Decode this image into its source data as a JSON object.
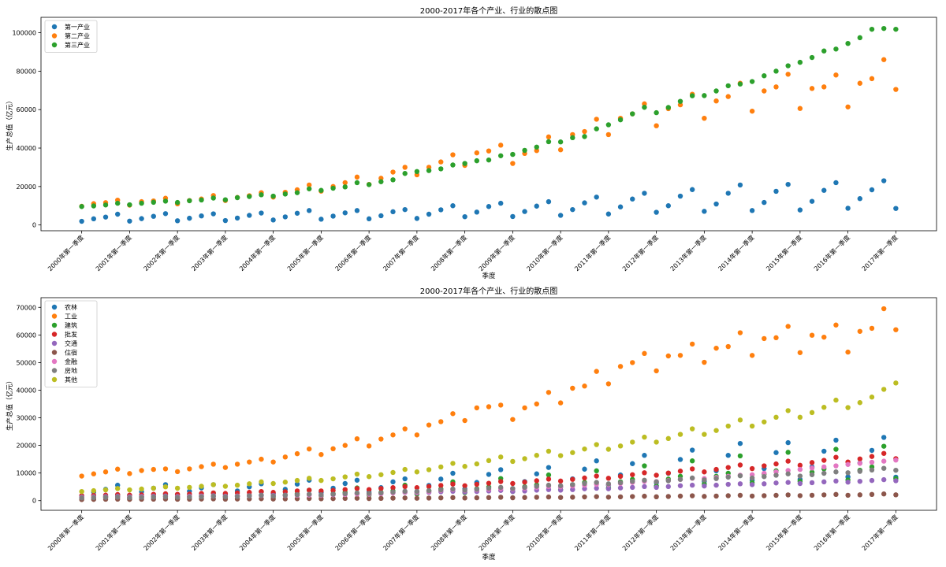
{
  "chart_data": [
    {
      "type": "scatter",
      "title": "2000-2017年各个产业、行业的散点图",
      "xlabel": "季度",
      "ylabel": "生产总值（亿元）",
      "ylim": [
        -3000,
        108000
      ],
      "yticks": [
        0,
        20000,
        40000,
        60000,
        80000,
        100000
      ],
      "xticks": [
        "2000年第一季度",
        "2001年第一季度",
        "2002年第一季度",
        "2003年第一季度",
        "2004年第一季度",
        "2005年第一季度",
        "2006年第一季度",
        "2007年第一季度",
        "2008年第一季度",
        "2009年第一季度",
        "2010年第一季度",
        "2011年第一季度",
        "2012年第一季度",
        "2013年第一季度",
        "2014年第一季度",
        "2015年第一季度",
        "2016年第一季度",
        "2017年第一季度"
      ],
      "legend_location": "upper-left",
      "series": [
        {
          "name": "第一产业",
          "color": "#1f77b4",
          "values": [
            1900,
            3200,
            4100,
            5600,
            2000,
            3300,
            4500,
            5900,
            2200,
            3500,
            4700,
            5800,
            2300,
            3600,
            5000,
            6200,
            2600,
            4200,
            6100,
            7500,
            3000,
            4600,
            6300,
            7500,
            3200,
            4800,
            6900,
            8000,
            3400,
            5600,
            7900,
            10000,
            4300,
            6700,
            9600,
            11300,
            4400,
            7000,
            9800,
            12100,
            5000,
            8000,
            11500,
            14500,
            5700,
            9400,
            13500,
            16500,
            6600,
            10000,
            15000,
            18400,
            7100,
            10900,
            16500,
            20800,
            7500,
            11700,
            17500,
            21100,
            7800,
            12300,
            18000,
            22000,
            8700,
            13700,
            18300,
            23000,
            8600
          ]
        },
        {
          "name": "第二产业",
          "color": "#ff7f0e",
          "values": [
            9700,
            11100,
            11600,
            12900,
            10300,
            12100,
            12500,
            13900,
            11000,
            12700,
            13500,
            15300,
            12700,
            14300,
            15200,
            16800,
            14500,
            17000,
            18300,
            20800,
            17600,
            20000,
            22000,
            24900,
            21100,
            24300,
            27500,
            30000,
            26100,
            30000,
            32800,
            36500,
            31000,
            37500,
            38500,
            41500,
            32000,
            37200,
            38700,
            45800,
            39100,
            47000,
            48600,
            55000,
            47000,
            55500,
            57800,
            63000,
            51600,
            60500,
            62500,
            68000,
            55500,
            64500,
            66800,
            73700,
            59200,
            69700,
            71800,
            78400,
            60600,
            71000,
            71800,
            78000,
            61400,
            73700,
            76100,
            86000,
            70500
          ]
        },
        {
          "name": "第三产业",
          "color": "#2ca02c",
          "values": [
            9600,
            9900,
            10400,
            11300,
            10500,
            11300,
            11800,
            12400,
            11700,
            12600,
            13000,
            14000,
            13100,
            14200,
            14800,
            15700,
            15000,
            16100,
            16800,
            18800,
            18000,
            19100,
            19800,
            22000,
            21000,
            22500,
            23500,
            26800,
            27800,
            28300,
            29200,
            31200,
            32000,
            33400,
            33800,
            36000,
            36700,
            38800,
            40500,
            43300,
            43200,
            45400,
            46000,
            50000,
            52100,
            54700,
            57800,
            61200,
            58400,
            61100,
            64300,
            67200,
            67300,
            69700,
            72400,
            73300,
            74600,
            77600,
            80000,
            82800,
            84600,
            87100,
            90500,
            91500,
            94400,
            97400,
            101800,
            102200,
            101800
          ]
        }
      ]
    },
    {
      "type": "scatter",
      "title": "2000-2017年各个产业、行业的散点图",
      "xlabel": "季度",
      "ylabel": "生产总值（亿元）",
      "ylim": [
        -3500,
        73500
      ],
      "yticks": [
        0,
        10000,
        20000,
        30000,
        40000,
        50000,
        60000,
        70000
      ],
      "xticks": [
        "2000年第一季度",
        "2001年第一季度",
        "2002年第一季度",
        "2003年第一季度",
        "2004年第一季度",
        "2005年第一季度",
        "2006年第一季度",
        "2007年第一季度",
        "2008年第一季度",
        "2009年第一季度",
        "2010年第一季度",
        "2011年第一季度",
        "2012年第一季度",
        "2013年第一季度",
        "2014年第一季度",
        "2015年第一季度",
        "2016年第一季度",
        "2017年第一季度"
      ],
      "legend_location": "upper-left",
      "series": [
        {
          "name": "农林",
          "color": "#1f77b4",
          "values": [
            1700,
            3100,
            4100,
            5600,
            1900,
            3200,
            4500,
            5800,
            2100,
            3400,
            4600,
            5800,
            2200,
            3500,
            5000,
            6100,
            2500,
            4100,
            6000,
            7400,
            2900,
            4500,
            6200,
            7400,
            3100,
            4700,
            6800,
            7900,
            3300,
            5500,
            7800,
            9900,
            4200,
            6600,
            9500,
            11200,
            4300,
            6900,
            9700,
            12000,
            4900,
            7900,
            11400,
            14400,
            5600,
            9300,
            13400,
            16400,
            6500,
            9900,
            14900,
            18300,
            7000,
            10800,
            16400,
            20700,
            7400,
            11600,
            17400,
            21000,
            7700,
            12200,
            17900,
            21900,
            8600,
            13600,
            18200,
            22900,
            8500
          ]
        },
        {
          "name": "工业",
          "color": "#ff7f0e",
          "values": [
            8900,
            9700,
            10400,
            11400,
            9800,
            10900,
            11300,
            11500,
            10500,
            11500,
            12300,
            13200,
            12000,
            13200,
            14000,
            15000,
            14000,
            15800,
            17000,
            18700,
            16700,
            18800,
            20000,
            22400,
            19800,
            22300,
            23800,
            26000,
            23800,
            27400,
            28600,
            31500,
            29000,
            33600,
            34000,
            34600,
            29400,
            33600,
            35000,
            39200,
            35400,
            40700,
            41500,
            46800,
            42300,
            48600,
            50000,
            53300,
            47000,
            52400,
            52600,
            56700,
            50100,
            55200,
            55800,
            60800,
            52600,
            58700,
            59000,
            63100,
            53600,
            59900,
            59200,
            63600,
            53800,
            61300,
            62400,
            69500,
            61900
          ]
        },
        {
          "name": "建筑",
          "color": "#2ca02c",
          "values": [
            800,
            1100,
            1300,
            2000,
            900,
            1300,
            1500,
            2300,
            1000,
            1400,
            1700,
            2700,
            1200,
            1700,
            2000,
            3200,
            1400,
            2100,
            2500,
            3800,
            1700,
            2500,
            3000,
            4600,
            2000,
            3000,
            3500,
            5600,
            2400,
            3600,
            4200,
            6800,
            2900,
            4300,
            4900,
            8000,
            3300,
            5000,
            5700,
            9300,
            3900,
            5800,
            6600,
            10800,
            4600,
            6800,
            7700,
            12600,
            5300,
            7800,
            8800,
            14400,
            6000,
            8800,
            9900,
            16200,
            6500,
            9600,
            10800,
            17500,
            7000,
            10300,
            11500,
            18600,
            7500,
            11000,
            12200,
            19700,
            8000
          ]
        },
        {
          "name": "批发",
          "color": "#d62728",
          "values": [
            1800,
            1900,
            2000,
            2200,
            2000,
            2100,
            2300,
            2500,
            2300,
            2400,
            2600,
            2800,
            2600,
            2800,
            3000,
            3300,
            3000,
            3200,
            3500,
            3800,
            3500,
            3700,
            4000,
            4400,
            4000,
            4400,
            4700,
            5100,
            4700,
            5100,
            5500,
            6000,
            5400,
            5900,
            6300,
            6900,
            6200,
            6700,
            7200,
            7800,
            7100,
            7700,
            8200,
            8900,
            8100,
            8800,
            9400,
            10100,
            9200,
            10000,
            10700,
            11500,
            10400,
            11300,
            12000,
            12900,
            11600,
            12600,
            13300,
            14300,
            12800,
            13800,
            14600,
            15700,
            14000,
            15100,
            16000,
            17100,
            15200
          ]
        },
        {
          "name": "交通",
          "color": "#9467bd",
          "values": [
            1300,
            1400,
            1500,
            1600,
            1400,
            1500,
            1600,
            1700,
            1500,
            1600,
            1700,
            1800,
            1600,
            1700,
            1800,
            2000,
            1900,
            2000,
            2100,
            2300,
            2100,
            2300,
            2400,
            2600,
            2400,
            2600,
            2800,
            3000,
            2800,
            3000,
            3200,
            3400,
            3100,
            3300,
            3500,
            3700,
            3300,
            3500,
            3800,
            4000,
            3800,
            4000,
            4300,
            4500,
            4300,
            4600,
            4800,
            5100,
            4800,
            5100,
            5400,
            5600,
            5300,
            5600,
            5900,
            6100,
            5800,
            6100,
            6400,
            6600,
            6200,
            6500,
            6800,
            7100,
            6700,
            7000,
            7300,
            7600,
            7200
          ]
        },
        {
          "name": "住宿",
          "color": "#8c564b",
          "values": [
            400,
            450,
            500,
            550,
            450,
            500,
            550,
            600,
            500,
            550,
            600,
            650,
            550,
            600,
            650,
            700,
            600,
            650,
            700,
            780,
            680,
            740,
            800,
            870,
            760,
            830,
            900,
            980,
            860,
            940,
            1010,
            1100,
            960,
            1040,
            1120,
            1220,
            1050,
            1130,
            1220,
            1320,
            1150,
            1240,
            1340,
            1450,
            1270,
            1370,
            1480,
            1600,
            1400,
            1510,
            1630,
            1760,
            1530,
            1650,
            1780,
            1920,
            1660,
            1790,
            1930,
            2080,
            1800,
            1940,
            2090,
            2250,
            1950,
            2100,
            2260,
            2430,
            2100
          ]
        },
        {
          "name": "金融",
          "color": "#e377c2",
          "values": [
            1100,
            1200,
            1200,
            1300,
            1200,
            1300,
            1300,
            1400,
            1300,
            1400,
            1500,
            1600,
            1500,
            1600,
            1700,
            1800,
            1700,
            1800,
            1900,
            2000,
            1900,
            2100,
            2200,
            2400,
            2300,
            2500,
            2800,
            3100,
            3000,
            3300,
            3700,
            4000,
            3700,
            3900,
            4100,
            4300,
            4200,
            4500,
            4800,
            5100,
            5000,
            5300,
            5600,
            5900,
            5800,
            6200,
            6600,
            7000,
            6900,
            7300,
            7700,
            8100,
            8000,
            8400,
            8800,
            9200,
            9400,
            9900,
            10400,
            10900,
            11300,
            11800,
            12200,
            12600,
            13100,
            13500,
            13900,
            14300,
            14700
          ]
        },
        {
          "name": "房地",
          "color": "#7f7f7f",
          "values": [
            1000,
            1100,
            1200,
            1300,
            1100,
            1200,
            1300,
            1400,
            1200,
            1300,
            1400,
            1600,
            1400,
            1500,
            1700,
            1900,
            1700,
            1900,
            2100,
            2300,
            2100,
            2300,
            2500,
            2800,
            2600,
            2800,
            3100,
            3400,
            3300,
            3600,
            3900,
            4200,
            3800,
            4100,
            4500,
            4800,
            4400,
            4800,
            5200,
            5600,
            5400,
            5800,
            6200,
            6600,
            6100,
            6500,
            7000,
            7400,
            6800,
            7200,
            7700,
            8200,
            7500,
            8000,
            8500,
            9000,
            8200,
            8700,
            9200,
            9700,
            8900,
            9400,
            9900,
            10400,
            10100,
            10600,
            11100,
            11700,
            11000
          ]
        },
        {
          "name": "其他",
          "color": "#bcbd22",
          "values": [
            3300,
            3600,
            3900,
            4400,
            3900,
            4200,
            4500,
            5000,
            4500,
            4800,
            5200,
            5800,
            5200,
            5600,
            6100,
            6800,
            6200,
            6700,
            7300,
            8100,
            7300,
            7900,
            8600,
            9600,
            8700,
            9400,
            10200,
            11300,
            10400,
            11200,
            12200,
            13500,
            12400,
            13300,
            14500,
            15800,
            14200,
            15200,
            16400,
            17900,
            16300,
            17400,
            18700,
            20300,
            18600,
            19800,
            21200,
            23000,
            21200,
            22500,
            24000,
            26000,
            24000,
            25400,
            27000,
            29200,
            27000,
            28500,
            30200,
            32600,
            30200,
            31900,
            33800,
            36400,
            33700,
            35500,
            37500,
            40300,
            42600
          ]
        }
      ]
    }
  ]
}
